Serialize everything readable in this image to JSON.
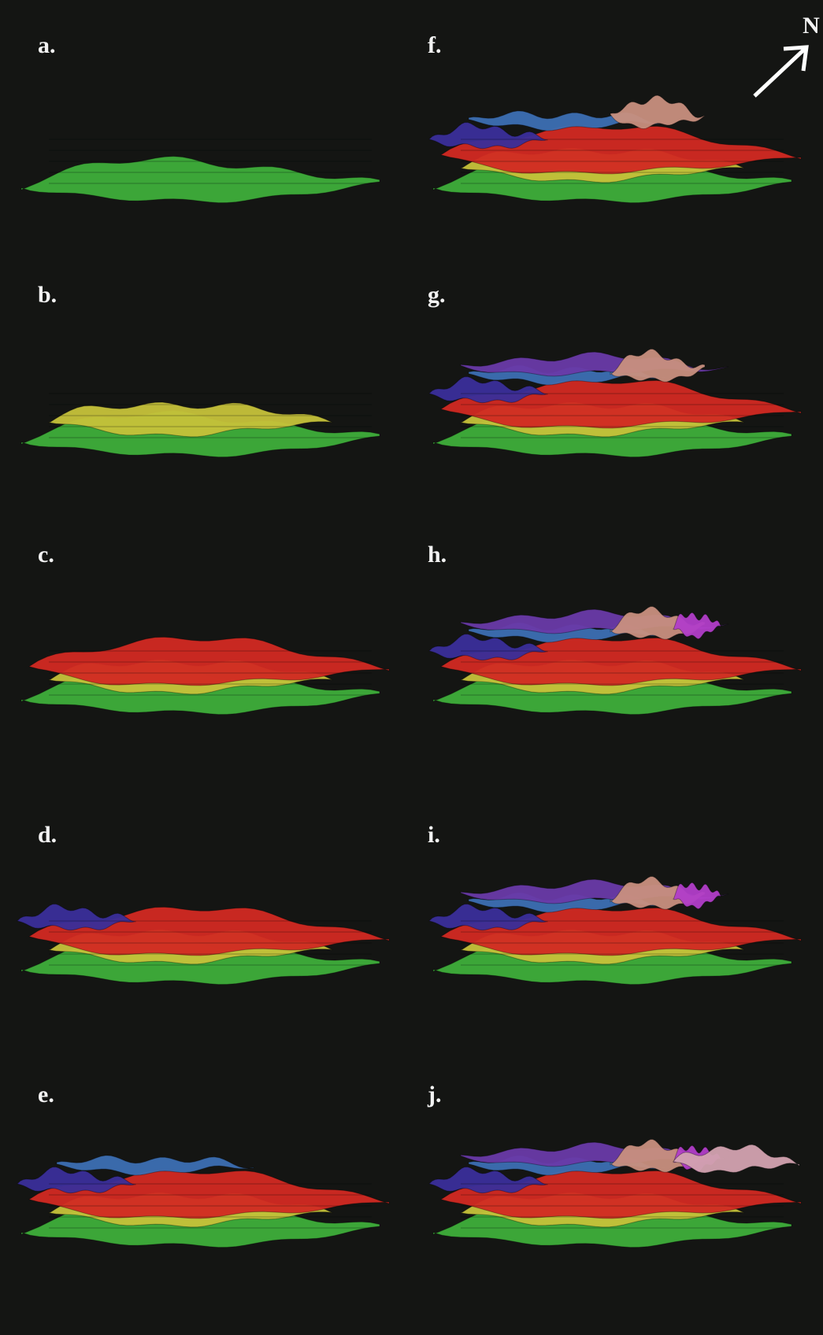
{
  "panels": [
    {
      "label": "a."
    },
    {
      "label": "b."
    },
    {
      "label": "c."
    },
    {
      "label": "d."
    },
    {
      "label": "e."
    },
    {
      "label": "f."
    },
    {
      "label": "g."
    },
    {
      "label": "h."
    },
    {
      "label": "i."
    },
    {
      "label": "j."
    }
  ],
  "north": "N"
}
